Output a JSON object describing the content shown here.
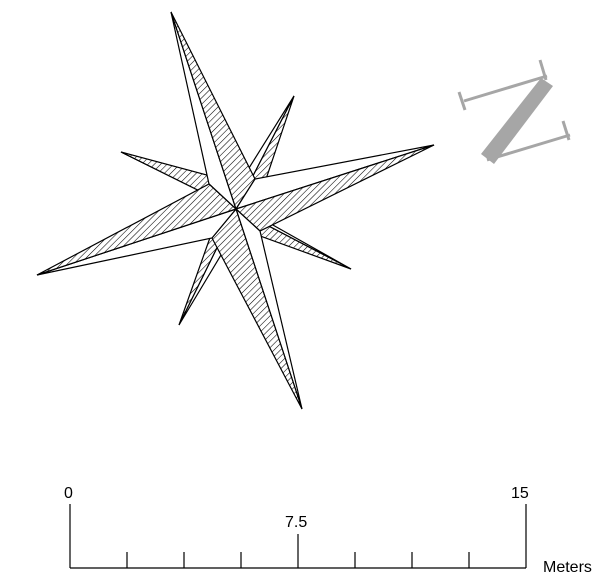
{
  "map": {
    "compass_rose": {
      "points": 8,
      "style": "hatched",
      "stroke": "#000000"
    },
    "north_arrow": {
      "letter": "N",
      "color": "#a6a6a6"
    },
    "scale_bar": {
      "labels": [
        "0",
        "7.5",
        "15"
      ],
      "unit": "Meters",
      "ticks": 9
    }
  }
}
